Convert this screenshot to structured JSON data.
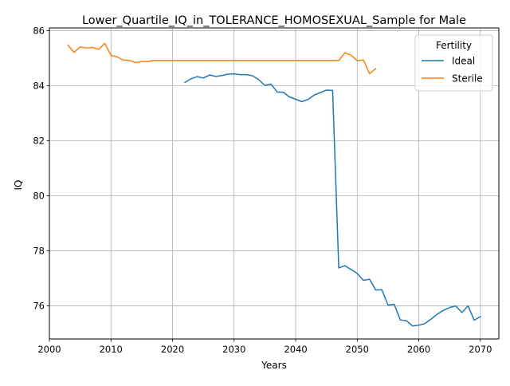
{
  "chart_data": {
    "type": "line",
    "title": "Lower_Quartile_IQ_in_TOLERANCE_HOMOSEXUAL_Sample for Male",
    "xlabel": "Years",
    "ylabel": "IQ",
    "xlim": [
      2000,
      2073
    ],
    "ylim": [
      74.8,
      86.1
    ],
    "xticks": [
      2000,
      2010,
      2020,
      2030,
      2040,
      2050,
      2060,
      2070
    ],
    "yticks": [
      76,
      78,
      80,
      82,
      84,
      86
    ],
    "grid": true,
    "legend": {
      "title": "Fertility",
      "position": "top-right"
    },
    "series": [
      {
        "name": "Ideal",
        "color": "#1f77b4",
        "x": [
          2022,
          2023,
          2024,
          2025,
          2026,
          2027,
          2028,
          2029,
          2030,
          2031,
          2032,
          2033,
          2034,
          2035,
          2036,
          2037,
          2038,
          2039,
          2040,
          2041,
          2042,
          2043,
          2044,
          2045,
          2046,
          2047,
          2048,
          2049,
          2050,
          2051,
          2052,
          2053,
          2054,
          2055,
          2056,
          2057,
          2058,
          2059,
          2060,
          2061,
          2062,
          2063,
          2064,
          2065,
          2066,
          2067,
          2068,
          2069,
          2070
        ],
        "y": [
          84.12,
          84.25,
          84.33,
          84.28,
          84.39,
          84.34,
          84.37,
          84.42,
          84.43,
          84.4,
          84.4,
          84.36,
          84.22,
          84.01,
          84.06,
          83.77,
          83.76,
          83.59,
          83.51,
          83.42,
          83.5,
          83.66,
          83.75,
          83.84,
          83.83,
          77.38,
          77.46,
          77.32,
          77.18,
          76.93,
          76.97,
          76.58,
          76.59,
          76.03,
          76.06,
          75.49,
          75.46,
          75.27,
          75.3,
          75.36,
          75.52,
          75.7,
          75.84,
          75.94,
          76.0,
          75.76,
          76.0,
          75.48,
          75.61
        ]
      },
      {
        "name": "Sterile",
        "color": "#ff7f0e",
        "x": [
          2003,
          2004,
          2005,
          2006,
          2007,
          2008,
          2009,
          2010,
          2011,
          2012,
          2013,
          2014,
          2015,
          2016,
          2017,
          2018,
          2019,
          2020,
          2021,
          2022,
          2023,
          2024,
          2025,
          2026,
          2027,
          2028,
          2029,
          2030,
          2031,
          2032,
          2033,
          2034,
          2035,
          2036,
          2037,
          2038,
          2039,
          2040,
          2041,
          2042,
          2043,
          2044,
          2045,
          2046,
          2047,
          2048,
          2049,
          2050,
          2051,
          2052,
          2053
        ],
        "y": [
          85.48,
          85.21,
          85.41,
          85.37,
          85.39,
          85.32,
          85.54,
          85.1,
          85.05,
          84.93,
          84.92,
          84.84,
          84.88,
          84.88,
          84.92,
          84.92,
          84.92,
          84.92,
          84.92,
          84.92,
          84.92,
          84.92,
          84.92,
          84.92,
          84.92,
          84.92,
          84.92,
          84.92,
          84.92,
          84.92,
          84.92,
          84.92,
          84.92,
          84.92,
          84.92,
          84.92,
          84.92,
          84.92,
          84.92,
          84.92,
          84.92,
          84.92,
          84.92,
          84.92,
          84.92,
          85.2,
          85.11,
          84.91,
          84.94,
          84.44,
          84.62
        ]
      }
    ]
  }
}
